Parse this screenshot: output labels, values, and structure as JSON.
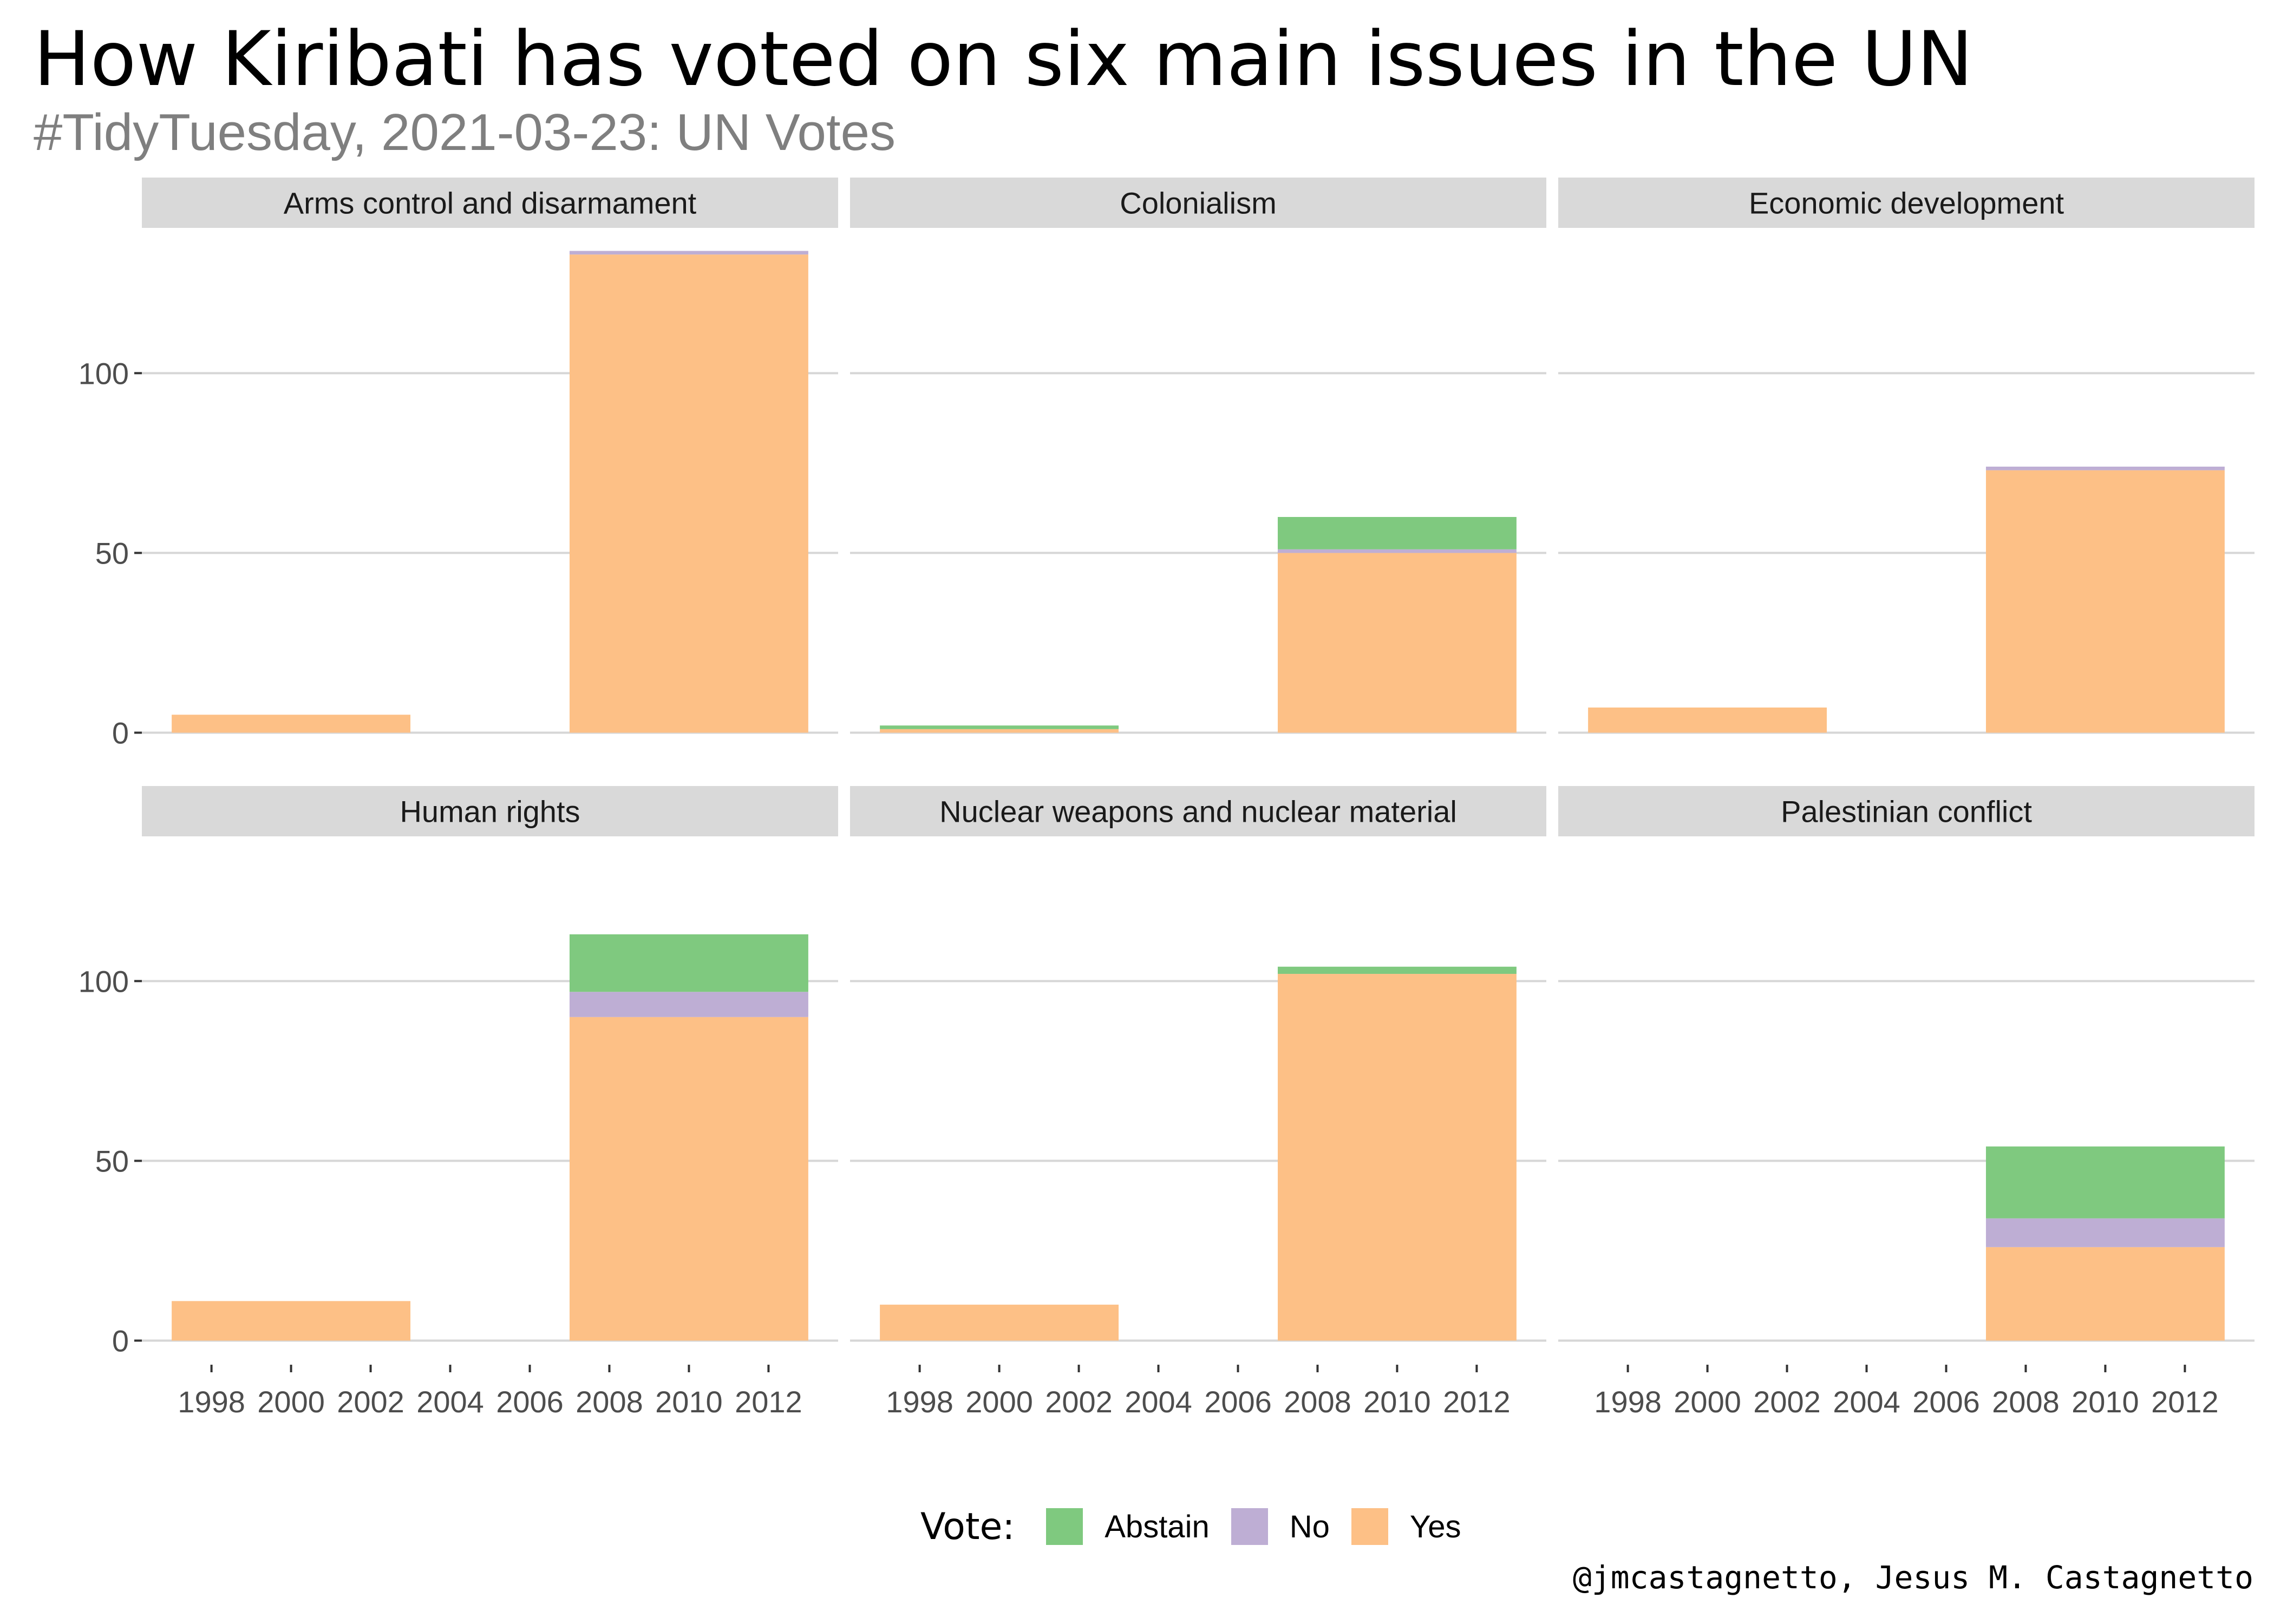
{
  "title": "How Kiribati has voted on six main issues in the UN",
  "subtitle": "#TidyTuesday, 2021-03-23: UN Votes",
  "caption": "@jmcastagnetto, Jesus M. Castagnetto",
  "legend": {
    "title": "Vote:",
    "items": [
      {
        "label": "Abstain",
        "color": "#7fc97f"
      },
      {
        "label": "No",
        "color": "#beaed4"
      },
      {
        "label": "Yes",
        "color": "#fdc086"
      }
    ]
  },
  "chart_data": {
    "type": "bar",
    "stacked": true,
    "facets": 6,
    "x_ticks": [
      1998,
      2000,
      2002,
      2004,
      2006,
      2008,
      2010,
      2012
    ],
    "xlim": [
      1996.25,
      2013.75
    ],
    "y_ticks": [
      0,
      50,
      100
    ],
    "ylim": [
      -6.7,
      140.4
    ],
    "grid": "horizontal major",
    "legend_position": "bottom",
    "bar_periods": [
      [
        1997,
        2003
      ],
      [
        2007,
        2013
      ]
    ],
    "series_order_bottom_to_top": [
      "Yes",
      "No",
      "Abstain"
    ],
    "panels": [
      {
        "name": "Arms control and disarmament",
        "bars": [
          {
            "period": "1997-2003",
            "Yes": 5,
            "No": 0,
            "Abstain": 0
          },
          {
            "period": "2007-2013",
            "Yes": 133,
            "No": 1,
            "Abstain": 0
          }
        ]
      },
      {
        "name": "Colonialism",
        "bars": [
          {
            "period": "1997-2003",
            "Yes": 1,
            "No": 0,
            "Abstain": 1
          },
          {
            "period": "2007-2013",
            "Yes": 50,
            "No": 1,
            "Abstain": 9
          }
        ]
      },
      {
        "name": "Economic development",
        "bars": [
          {
            "period": "1997-2003",
            "Yes": 7,
            "No": 0,
            "Abstain": 0
          },
          {
            "period": "2007-2013",
            "Yes": 73,
            "No": 1,
            "Abstain": 0
          }
        ]
      },
      {
        "name": "Human rights",
        "bars": [
          {
            "period": "1997-2003",
            "Yes": 11,
            "No": 0,
            "Abstain": 0
          },
          {
            "period": "2007-2013",
            "Yes": 90,
            "No": 7,
            "Abstain": 16
          }
        ]
      },
      {
        "name": "Nuclear weapons and nuclear material",
        "bars": [
          {
            "period": "1997-2003",
            "Yes": 10,
            "No": 0,
            "Abstain": 0
          },
          {
            "period": "2007-2013",
            "Yes": 102,
            "No": 0,
            "Abstain": 2
          }
        ]
      },
      {
        "name": "Palestinian conflict",
        "bars": [
          {
            "period": "2007-2013",
            "Yes": 26,
            "No": 8,
            "Abstain": 20
          }
        ]
      }
    ]
  }
}
